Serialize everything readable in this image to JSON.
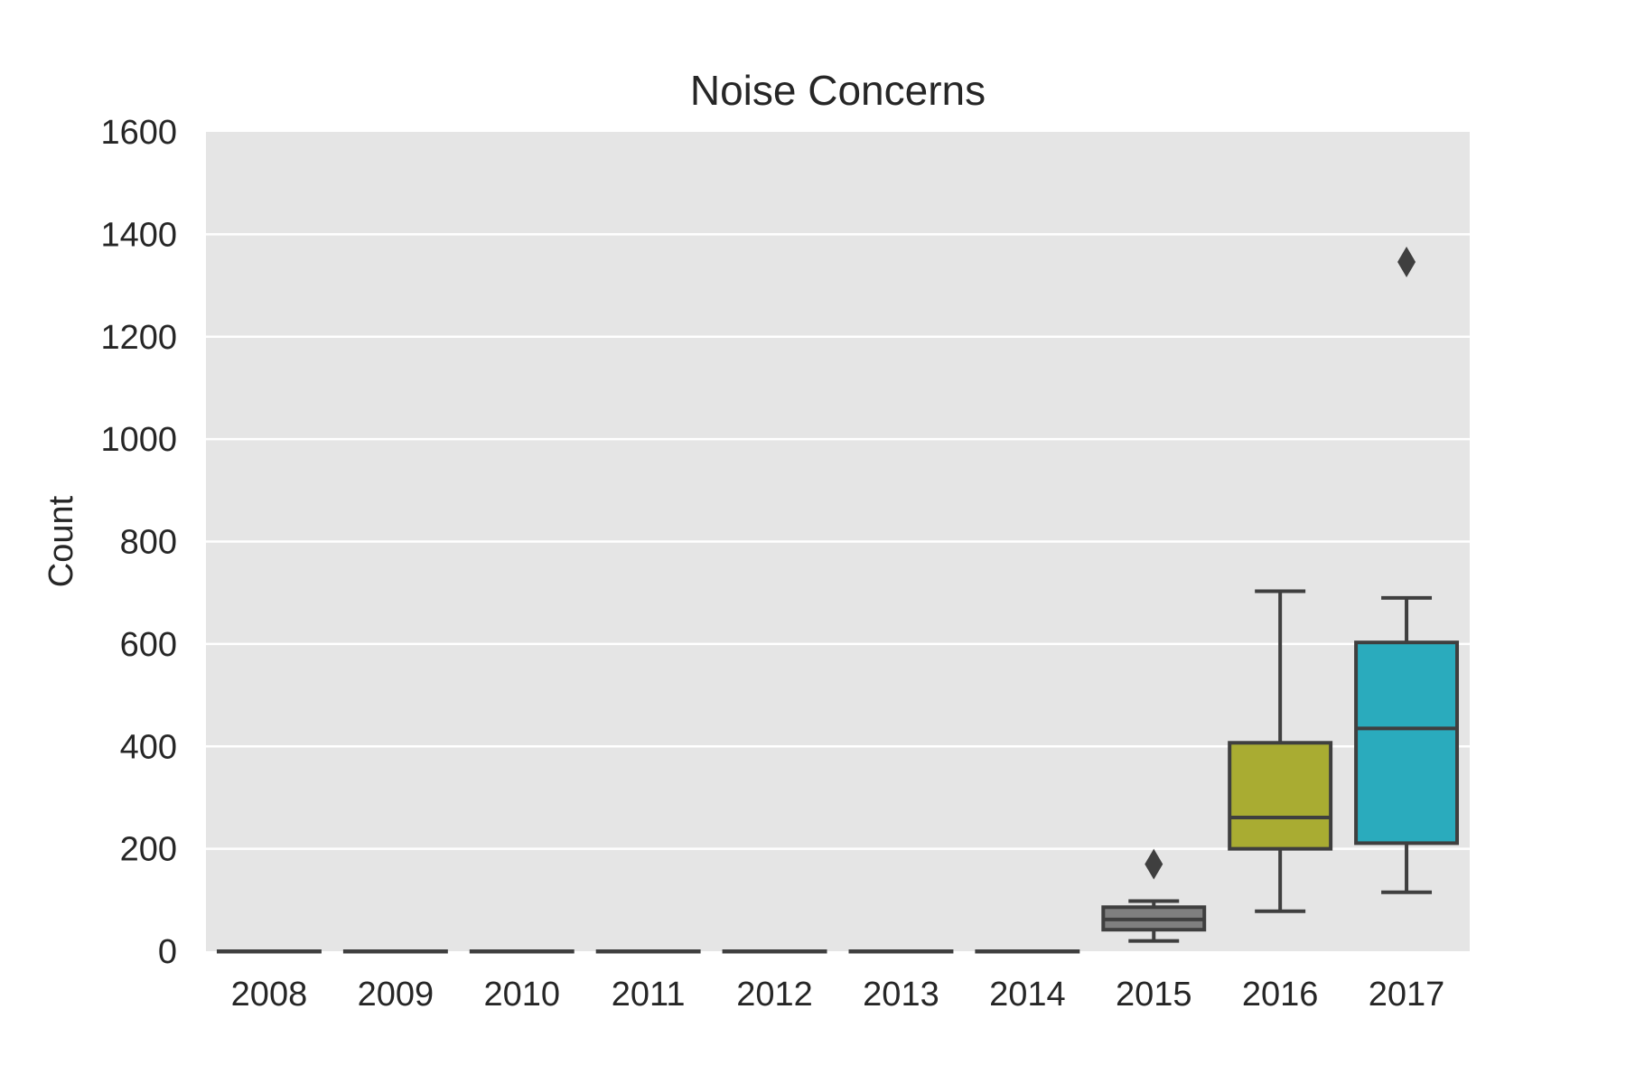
{
  "chart_data": {
    "type": "box",
    "title": "Noise Concerns",
    "xlabel": "",
    "ylabel": "Count",
    "ylim": [
      0,
      1600
    ],
    "yticks": [
      "0",
      "200",
      "400",
      "600",
      "800",
      "1000",
      "1200",
      "1400",
      "1600"
    ],
    "grid": true,
    "background": "#e5e5e5",
    "categories": [
      "2008",
      "2009",
      "2010",
      "2011",
      "2012",
      "2013",
      "2014",
      "2015",
      "2016",
      "2017"
    ],
    "boxes": [
      {
        "category": "2008",
        "whisker_low": 0,
        "q1": 0,
        "median": 0,
        "q3": 0,
        "whisker_high": 0,
        "outliers": [],
        "color": "#1f77b4"
      },
      {
        "category": "2009",
        "whisker_low": 0,
        "q1": 0,
        "median": 0,
        "q3": 0,
        "whisker_high": 0,
        "outliers": [],
        "color": "#ff7f0e"
      },
      {
        "category": "2010",
        "whisker_low": 0,
        "q1": 0,
        "median": 0,
        "q3": 0,
        "whisker_high": 0,
        "outliers": [],
        "color": "#2ca02c"
      },
      {
        "category": "2011",
        "whisker_low": 0,
        "q1": 0,
        "median": 0,
        "q3": 0,
        "whisker_high": 0,
        "outliers": [],
        "color": "#d62728"
      },
      {
        "category": "2012",
        "whisker_low": 0,
        "q1": 0,
        "median": 0,
        "q3": 0,
        "whisker_high": 0,
        "outliers": [],
        "color": "#9467bd"
      },
      {
        "category": "2013",
        "whisker_low": 0,
        "q1": 0,
        "median": 0,
        "q3": 0,
        "whisker_high": 0,
        "outliers": [],
        "color": "#8c564b"
      },
      {
        "category": "2014",
        "whisker_low": 0,
        "q1": 0,
        "median": 0,
        "q3": 0,
        "whisker_high": 0,
        "outliers": [],
        "color": "#e377c2"
      },
      {
        "category": "2015",
        "whisker_low": 20,
        "q1": 42,
        "median": 62,
        "q3": 86,
        "whisker_high": 98,
        "outliers": [
          170
        ],
        "color": "#7f7f7f"
      },
      {
        "category": "2016",
        "whisker_low": 78,
        "q1": 200,
        "median": 261,
        "q3": 407,
        "whisker_high": 703,
        "outliers": [],
        "color": "#a9ac32"
      },
      {
        "category": "2017",
        "whisker_low": 115,
        "q1": 211,
        "median": 435,
        "q3": 603,
        "whisker_high": 690,
        "outliers": [
          1346
        ],
        "color": "#2aabbd"
      }
    ]
  }
}
